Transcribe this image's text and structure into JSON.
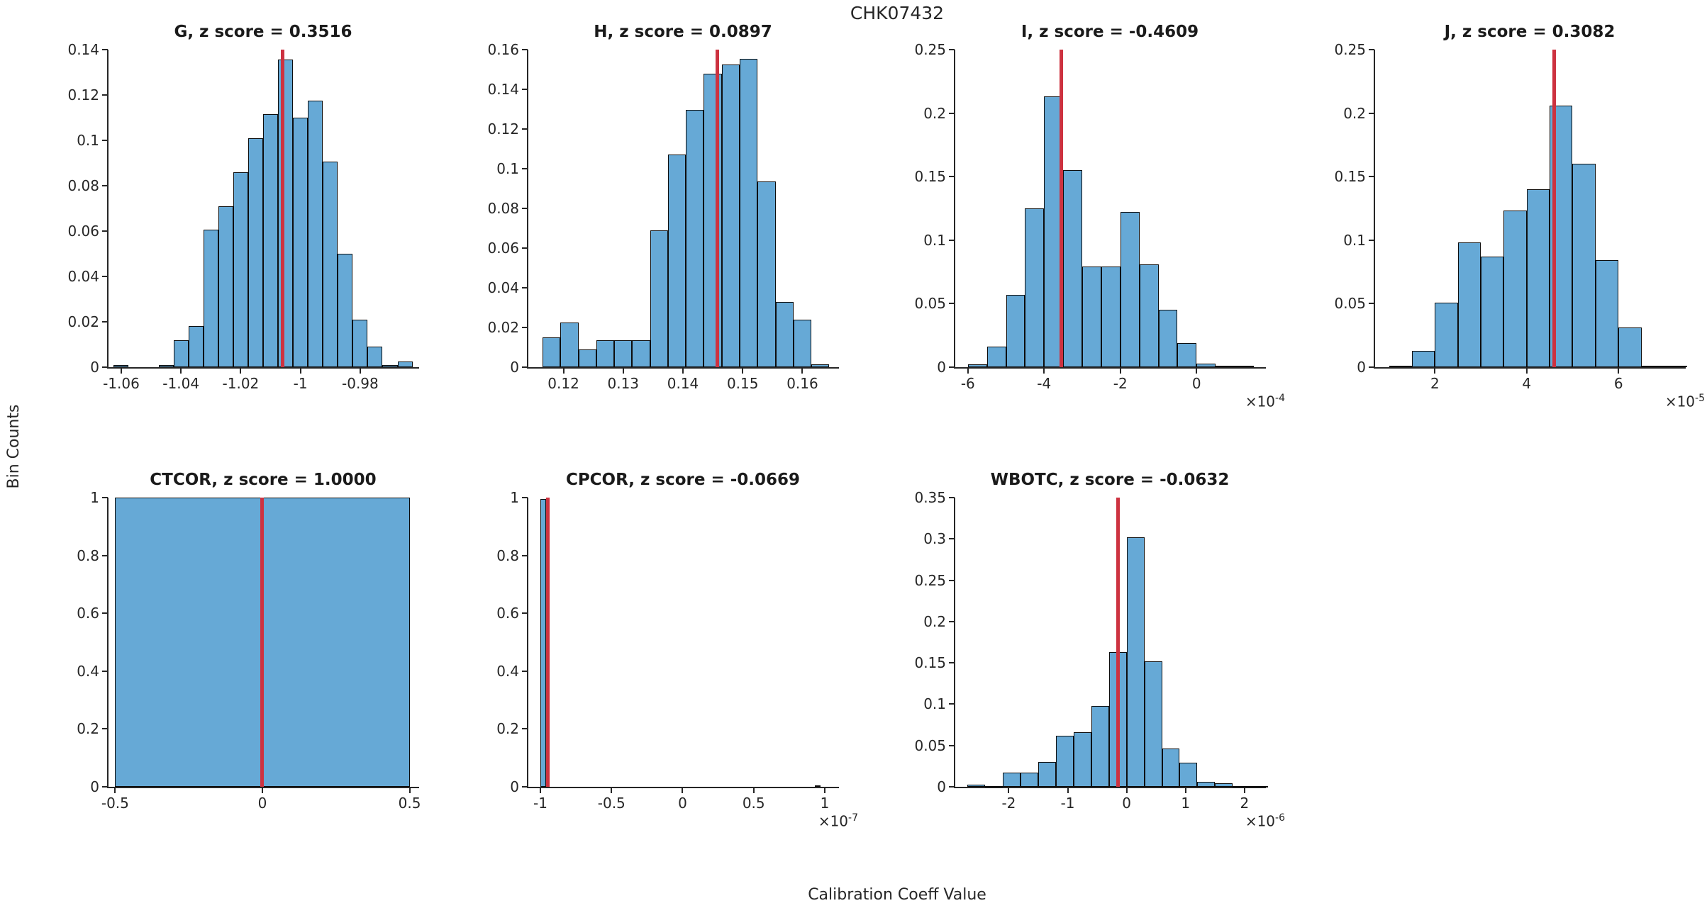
{
  "figure": {
    "title": "CHK07432",
    "ylabel": "Bin Counts",
    "xlabel": "Calibration Coeff Value",
    "colors": {
      "bar_fill": "#66A9D6",
      "bar_edge": "#0d0d0d",
      "red_line": "#CD3240",
      "axis": "#262626",
      "text": "#262626",
      "title_text": "#1a1a1a"
    }
  },
  "chart_data": [
    {
      "type": "bar",
      "name": "G",
      "title": "G, z score = 0.3516",
      "z_score": 0.3516,
      "grid": {
        "row": 0,
        "col": 0
      },
      "xlim": [
        -1.0645,
        -0.9605
      ],
      "ylim": [
        0,
        0.14
      ],
      "grid_lines": false,
      "yticks": [
        {
          "v": 0,
          "label": "0"
        },
        {
          "v": 0.02,
          "label": "0.02"
        },
        {
          "v": 0.04,
          "label": "0.04"
        },
        {
          "v": 0.06,
          "label": "0.06"
        },
        {
          "v": 0.08,
          "label": "0.08"
        },
        {
          "v": 0.1,
          "label": "0.1"
        },
        {
          "v": 0.12,
          "label": "0.12"
        },
        {
          "v": 0.14,
          "label": "0.14"
        }
      ],
      "xticks": [
        {
          "v": -1.06,
          "label": "-1.06"
        },
        {
          "v": -1.04,
          "label": "-1.04"
        },
        {
          "v": -1.02,
          "label": "-1.02"
        },
        {
          "v": -1.0,
          "label": "-1"
        },
        {
          "v": -0.98,
          "label": "-0.98"
        }
      ],
      "x_exponent": null,
      "bin_width": 0.005,
      "bars": [
        [
          -1.0625,
          0.001
        ],
        [
          -1.0475,
          0.001
        ],
        [
          -1.0425,
          0.012
        ],
        [
          -1.0375,
          0.018
        ],
        [
          -1.0325,
          0.0605
        ],
        [
          -1.0275,
          0.071
        ],
        [
          -1.0225,
          0.086
        ],
        [
          -1.0175,
          0.101
        ],
        [
          -1.0125,
          0.1115
        ],
        [
          -1.0075,
          0.1355
        ],
        [
          -1.0025,
          0.11
        ],
        [
          -0.9975,
          0.1175
        ],
        [
          -0.9925,
          0.0905
        ],
        [
          -0.9875,
          0.05
        ],
        [
          -0.9825,
          0.021
        ],
        [
          -0.9775,
          0.009
        ],
        [
          -0.9725,
          0.001
        ],
        [
          -0.9675,
          0.0025
        ]
      ],
      "red_line_x": -1.006
    },
    {
      "type": "bar",
      "name": "H",
      "title": "H, z score = 0.0897",
      "z_score": 0.0897,
      "grid": {
        "row": 0,
        "col": 1
      },
      "xlim": [
        0.114,
        0.166
      ],
      "ylim": [
        0,
        0.16
      ],
      "grid_lines": false,
      "yticks": [
        {
          "v": 0,
          "label": "0"
        },
        {
          "v": 0.02,
          "label": "0.02"
        },
        {
          "v": 0.04,
          "label": "0.04"
        },
        {
          "v": 0.06,
          "label": "0.06"
        },
        {
          "v": 0.08,
          "label": "0.08"
        },
        {
          "v": 0.1,
          "label": "0.1"
        },
        {
          "v": 0.12,
          "label": "0.12"
        },
        {
          "v": 0.14,
          "label": "0.14"
        },
        {
          "v": 0.16,
          "label": "0.16"
        }
      ],
      "xticks": [
        {
          "v": 0.12,
          "label": "0.12"
        },
        {
          "v": 0.13,
          "label": "0.13"
        },
        {
          "v": 0.14,
          "label": "0.14"
        },
        {
          "v": 0.15,
          "label": "0.15"
        },
        {
          "v": 0.16,
          "label": "0.16"
        }
      ],
      "x_exponent": null,
      "bin_width": 0.003,
      "bars": [
        [
          0.1165,
          0.015
        ],
        [
          0.1195,
          0.0225
        ],
        [
          0.1225,
          0.009
        ],
        [
          0.1255,
          0.0135
        ],
        [
          0.1285,
          0.0135
        ],
        [
          0.1315,
          0.0135
        ],
        [
          0.1345,
          0.069
        ],
        [
          0.1375,
          0.107
        ],
        [
          0.1405,
          0.1295
        ],
        [
          0.1435,
          0.148
        ],
        [
          0.1465,
          0.1525
        ],
        [
          0.1495,
          0.1555
        ],
        [
          0.1525,
          0.0935
        ],
        [
          0.1555,
          0.033
        ],
        [
          0.1585,
          0.024
        ],
        [
          0.1615,
          0.0015
        ]
      ],
      "red_line_x": 0.1458
    },
    {
      "type": "bar",
      "name": "I",
      "title": "I, z score = -0.4609",
      "z_score": -0.4609,
      "grid": {
        "row": 0,
        "col": 2
      },
      "xlim": [
        -6.35,
        1.8
      ],
      "ylim": [
        0,
        0.25
      ],
      "grid_lines": false,
      "yticks": [
        {
          "v": 0,
          "label": "0"
        },
        {
          "v": 0.05,
          "label": "0.05"
        },
        {
          "v": 0.1,
          "label": "0.1"
        },
        {
          "v": 0.15,
          "label": "0.15"
        },
        {
          "v": 0.2,
          "label": "0.2"
        },
        {
          "v": 0.25,
          "label": "0.25"
        }
      ],
      "xticks": [
        {
          "v": -6,
          "label": "-6"
        },
        {
          "v": -4,
          "label": "-4"
        },
        {
          "v": -2,
          "label": "-2"
        },
        {
          "v": 0,
          "label": "0"
        }
      ],
      "x_exponent": "-4",
      "bin_width": 0.5,
      "bars": [
        [
          -6.0,
          0.002
        ],
        [
          -5.5,
          0.016
        ],
        [
          -5.0,
          0.057
        ],
        [
          -4.5,
          0.125
        ],
        [
          -4.0,
          0.213
        ],
        [
          -3.5,
          0.155
        ],
        [
          -3.0,
          0.079
        ],
        [
          -2.5,
          0.079
        ],
        [
          -2.0,
          0.122
        ],
        [
          -1.5,
          0.081
        ],
        [
          -1.0,
          0.045
        ],
        [
          -0.5,
          0.019
        ],
        [
          0.0,
          0.003
        ],
        [
          0.5,
          0.001
        ],
        [
          1.0,
          0.001
        ]
      ],
      "red_line_x": -3.55
    },
    {
      "type": "bar",
      "name": "J",
      "title": "J, z score = 0.3082",
      "z_score": 0.3082,
      "grid": {
        "row": 0,
        "col": 3
      },
      "xlim": [
        0.68,
        7.45
      ],
      "ylim": [
        0,
        0.25
      ],
      "grid_lines": false,
      "yticks": [
        {
          "v": 0,
          "label": "0"
        },
        {
          "v": 0.05,
          "label": "0.05"
        },
        {
          "v": 0.1,
          "label": "0.1"
        },
        {
          "v": 0.15,
          "label": "0.15"
        },
        {
          "v": 0.2,
          "label": "0.2"
        },
        {
          "v": 0.25,
          "label": "0.25"
        }
      ],
      "xticks": [
        {
          "v": 2,
          "label": "2"
        },
        {
          "v": 4,
          "label": "4"
        },
        {
          "v": 6,
          "label": "6"
        }
      ],
      "x_exponent": "-5",
      "bin_width": 0.5,
      "bars": [
        [
          1.0,
          0.001
        ],
        [
          1.5,
          0.013
        ],
        [
          2.0,
          0.051
        ],
        [
          2.5,
          0.098
        ],
        [
          3.0,
          0.087
        ],
        [
          3.5,
          0.1235
        ],
        [
          4.0,
          0.14
        ],
        [
          4.5,
          0.206
        ],
        [
          5.0,
          0.16
        ],
        [
          5.5,
          0.084
        ],
        [
          6.0,
          0.031
        ],
        [
          6.5,
          0.001
        ],
        [
          7.0,
          0.001
        ]
      ],
      "red_line_x": 4.6
    },
    {
      "type": "bar",
      "name": "CTCOR",
      "title": "CTCOR, z score = 1.0000",
      "z_score": 1.0,
      "grid": {
        "row": 1,
        "col": 0
      },
      "xlim": [
        -0.525,
        0.53
      ],
      "ylim": [
        0,
        1
      ],
      "grid_lines": false,
      "yticks": [
        {
          "v": 0,
          "label": "0"
        },
        {
          "v": 0.2,
          "label": "0.2"
        },
        {
          "v": 0.4,
          "label": "0.4"
        },
        {
          "v": 0.6,
          "label": "0.6"
        },
        {
          "v": 0.8,
          "label": "0.8"
        },
        {
          "v": 1,
          "label": "1"
        }
      ],
      "xticks": [
        {
          "v": -0.5,
          "label": "-0.5"
        },
        {
          "v": 0,
          "label": "0"
        },
        {
          "v": 0.5,
          "label": "0.5"
        }
      ],
      "x_exponent": null,
      "bin_width": 1.0,
      "bars": [
        [
          -0.5,
          1.0
        ]
      ],
      "red_line_x": 0
    },
    {
      "type": "bar",
      "name": "CPCOR",
      "title": "CPCOR, z score = -0.0669",
      "z_score": -0.0669,
      "grid": {
        "row": 1,
        "col": 1
      },
      "xlim": [
        -1.09,
        1.095
      ],
      "ylim": [
        0,
        1
      ],
      "grid_lines": false,
      "yticks": [
        {
          "v": 0,
          "label": "0"
        },
        {
          "v": 0.2,
          "label": "0.2"
        },
        {
          "v": 0.4,
          "label": "0.4"
        },
        {
          "v": 0.6,
          "label": "0.6"
        },
        {
          "v": 0.8,
          "label": "0.8"
        },
        {
          "v": 1,
          "label": "1"
        }
      ],
      "xticks": [
        {
          "v": -1,
          "label": "-1"
        },
        {
          "v": -0.5,
          "label": "-0.5"
        },
        {
          "v": 0,
          "label": "0"
        },
        {
          "v": 0.5,
          "label": "0.5"
        },
        {
          "v": 1,
          "label": "1"
        }
      ],
      "x_exponent": "-7",
      "bin_width": 0.04,
      "bars": [
        [
          -1.0,
          0.995
        ],
        [
          0.93,
          0.006
        ]
      ],
      "red_line_x": -0.948
    },
    {
      "type": "bar",
      "name": "WBOTC",
      "title": "WBOTC, z score = -0.0632",
      "z_score": -0.0632,
      "grid": {
        "row": 1,
        "col": 2
      },
      "xlim": [
        -2.92,
        2.35
      ],
      "ylim": [
        0,
        0.35
      ],
      "grid_lines": false,
      "yticks": [
        {
          "v": 0,
          "label": "0"
        },
        {
          "v": 0.05,
          "label": "0.05"
        },
        {
          "v": 0.1,
          "label": "0.1"
        },
        {
          "v": 0.15,
          "label": "0.15"
        },
        {
          "v": 0.2,
          "label": "0.2"
        },
        {
          "v": 0.25,
          "label": "0.25"
        },
        {
          "v": 0.3,
          "label": "0.3"
        },
        {
          "v": 0.35,
          "label": "0.35"
        }
      ],
      "xticks": [
        {
          "v": -2,
          "label": "-2"
        },
        {
          "v": -1,
          "label": "-1"
        },
        {
          "v": 0,
          "label": "0"
        },
        {
          "v": 1,
          "label": "1"
        },
        {
          "v": 2,
          "label": "2"
        }
      ],
      "x_exponent": "-6",
      "bin_width": 0.3,
      "bars": [
        [
          -2.7,
          0.003
        ],
        [
          -2.4,
          0.001
        ],
        [
          -2.1,
          0.017
        ],
        [
          -1.8,
          0.017
        ],
        [
          -1.5,
          0.03
        ],
        [
          -1.2,
          0.062
        ],
        [
          -0.9,
          0.066
        ],
        [
          -0.6,
          0.098
        ],
        [
          -0.3,
          0.163
        ],
        [
          0.0,
          0.302
        ],
        [
          0.3,
          0.152
        ],
        [
          0.6,
          0.046
        ],
        [
          0.9,
          0.029
        ],
        [
          1.2,
          0.006
        ],
        [
          1.5,
          0.004
        ],
        [
          1.8,
          0.001
        ],
        [
          2.1,
          0.001
        ]
      ],
      "red_line_x": -0.15
    }
  ]
}
